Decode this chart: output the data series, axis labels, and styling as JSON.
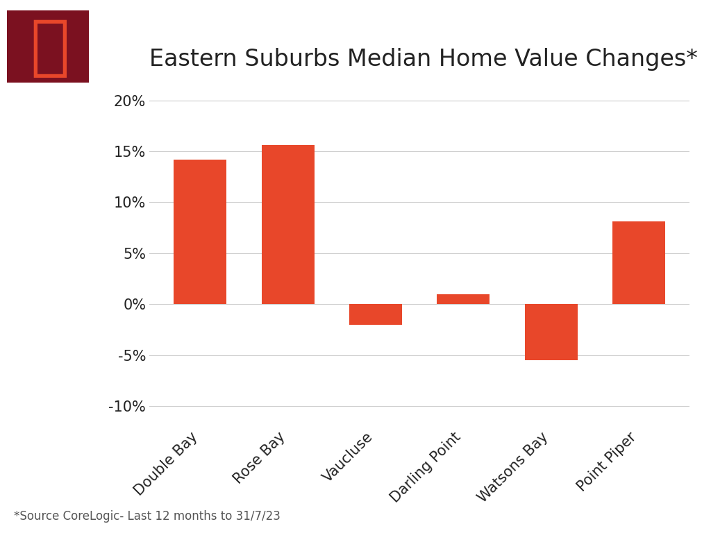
{
  "title": "Eastern Suburbs Median Home Value Changes*",
  "categories": [
    "Double Bay",
    "Rose Bay",
    "Vaucluse",
    "Darling Point",
    "Watsons Bay",
    "Point Piper"
  ],
  "values": [
    14.2,
    15.6,
    -2.0,
    1.0,
    -5.5,
    8.1
  ],
  "bar_color": "#E8472A",
  "background_color": "#FFFFFF",
  "ylim": [
    -12,
    22
  ],
  "yticks": [
    -10,
    -5,
    0,
    5,
    10,
    15,
    20
  ],
  "ytick_labels": [
    "-10%",
    "-5%",
    "0%",
    "5%",
    "10%",
    "15%",
    "20%"
  ],
  "title_fontsize": 24,
  "tick_fontsize": 15,
  "footnote": "*Source CoreLogic- Last 12 months to 31/7/23",
  "footnote_fontsize": 12,
  "logo_bg_color": "#7B1120",
  "logo_text": "ℙ",
  "logo_text_color": "#E8472A",
  "grid_color": "#CCCCCC",
  "text_color": "#222222"
}
